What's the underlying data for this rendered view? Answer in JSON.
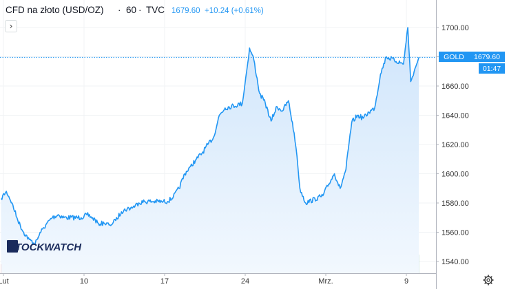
{
  "header": {
    "title": "CFD na złoto (USD/OZ)",
    "separator": "·",
    "interval": "60",
    "source": "TVC",
    "last": "1679.60",
    "change": "+10.24 (+0.61%)",
    "toggle_icon": "chevron-right-icon"
  },
  "price_label": {
    "symbol": "GOLD",
    "value": "1679.60",
    "countdown": "01:47"
  },
  "watermark": "STOCKWATCH",
  "settings_icon": "gear-icon",
  "colors": {
    "line": "#2196f3",
    "area_top": "#cfe5fb",
    "area_bottom": "#f2f8fe",
    "price_line": "#2196f3",
    "label_bg": "#2196f3",
    "volume_up": "#8fcbbd",
    "volume_down": "#f0a3a0",
    "header_change": "#2196f3",
    "axis_text": "#333333"
  },
  "chart_data": {
    "type": "area",
    "title": "CFD na złoto (USD/OZ)",
    "interval": "60",
    "y_ticks": [
      1540,
      1560,
      1580,
      1600,
      1620,
      1640,
      1660,
      1680,
      1700
    ],
    "y_tick_labels": [
      "1540.00",
      "1560.00",
      "1580.00",
      "1600.00",
      "1620.00",
      "1640.00",
      "1660.00",
      "1680.00",
      "1700.00"
    ],
    "ylim": [
      1534,
      1714
    ],
    "x_ticks": [
      {
        "label": "Lut",
        "at": "2020-02-03"
      },
      {
        "label": "10",
        "at": "2020-02-10"
      },
      {
        "label": "17",
        "at": "2020-02-17"
      },
      {
        "label": "24",
        "at": "2020-02-24"
      },
      {
        "label": "Mrz.",
        "at": "2020-03-02"
      },
      {
        "label": "9",
        "at": "2020-03-09"
      }
    ],
    "xlim": [
      "2020-02-02 19:00",
      "2020-03-12 00:00"
    ],
    "series": [
      {
        "values_x": [
          "2020-02-02 19:00",
          "2020-02-03 06:00",
          "2020-02-03 18:00",
          "2020-02-04 06:00",
          "2020-02-04 18:00",
          "2020-02-05 06:00",
          "2020-02-05 18:00",
          "2020-02-06 06:00",
          "2020-02-06 18:00",
          "2020-02-07 06:00",
          "2020-02-07 18:00",
          "2020-02-08 06:00",
          "2020-02-09 18:00",
          "2020-02-10 06:00",
          "2020-02-10 18:00",
          "2020-02-11 06:00",
          "2020-02-11 18:00",
          "2020-02-12 06:00",
          "2020-02-12 18:00",
          "2020-02-13 06:00",
          "2020-02-13 18:00",
          "2020-02-14 06:00",
          "2020-02-14 18:00",
          "2020-02-15 06:00",
          "2020-02-16 18:00",
          "2020-02-17 06:00",
          "2020-02-17 18:00",
          "2020-02-18 06:00",
          "2020-02-18 18:00",
          "2020-02-19 06:00",
          "2020-02-19 18:00",
          "2020-02-20 06:00",
          "2020-02-20 18:00",
          "2020-02-21 06:00",
          "2020-02-21 18:00",
          "2020-02-22 06:00",
          "2020-02-23 18:00",
          "2020-02-24 03:00",
          "2020-02-24 09:00",
          "2020-02-24 18:00",
          "2020-02-25 06:00",
          "2020-02-25 18:00",
          "2020-02-26 06:00",
          "2020-02-26 18:00",
          "2020-02-27 06:00",
          "2020-02-27 18:00",
          "2020-02-28 06:00",
          "2020-02-28 12:00",
          "2020-02-28 18:00",
          "2020-02-29 06:00",
          "2020-03-01 18:00",
          "2020-03-02 06:00",
          "2020-03-02 18:00",
          "2020-03-03 06:00",
          "2020-03-03 18:00",
          "2020-03-04 06:00",
          "2020-03-04 18:00",
          "2020-03-05 06:00",
          "2020-03-05 18:00",
          "2020-03-06 06:00",
          "2020-03-06 18:00",
          "2020-03-07 06:00",
          "2020-03-08 18:00",
          "2020-03-09 03:00",
          "2020-03-09 09:00",
          "2020-03-09 18:00",
          "2020-03-10 02:00"
        ],
        "values": [
          1583,
          1588,
          1580,
          1568,
          1560,
          1555,
          1552,
          1560,
          1566,
          1570,
          1572,
          1570,
          1570,
          1572,
          1570,
          1566,
          1566,
          1565,
          1568,
          1574,
          1576,
          1577,
          1580,
          1581,
          1581,
          1581,
          1584,
          1590,
          1600,
          1605,
          1610,
          1614,
          1620,
          1625,
          1640,
          1645,
          1648,
          1670,
          1686,
          1678,
          1655,
          1648,
          1636,
          1646,
          1643,
          1650,
          1628,
          1612,
          1590,
          1580,
          1585,
          1593,
          1600,
          1590,
          1603,
          1635,
          1640,
          1638,
          1642,
          1645,
          1668,
          1680,
          1675,
          1700,
          1663,
          1672,
          1679.6
        ]
      }
    ],
    "volume_note": "volume histogram at bottom, green = up bars, red = down bars"
  }
}
